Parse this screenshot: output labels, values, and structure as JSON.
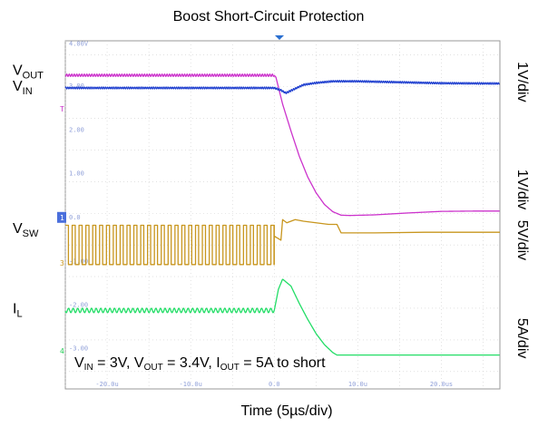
{
  "chart_data": {
    "type": "line",
    "title": "Boost Short-Circuit Protection",
    "xlabel": "Time (5µs/div)",
    "x_unit": "µs",
    "xlim": [
      -25,
      27
    ],
    "x_tick_labels": [
      {
        "x": -20,
        "label": "-20.0u"
      },
      {
        "x": -10,
        "label": "-10.0u"
      },
      {
        "x": 0,
        "label": "0.0"
      },
      {
        "x": 10,
        "label": "10.0u"
      },
      {
        "x": 20,
        "label": "20.0us"
      }
    ],
    "y_tick_labels": [
      {
        "div": 4.35,
        "label": "4.00V"
      },
      {
        "div": 3.02,
        "label": "3.00"
      },
      {
        "div": 1.63,
        "label": "2.00"
      },
      {
        "div": 0.25,
        "label": "1.00"
      },
      {
        "div": -1.13,
        "label": "0.0"
      },
      {
        "div": -2.52,
        "label": "-1.00"
      },
      {
        "div": -3.9,
        "label": "-2.00"
      },
      {
        "div": -5.28,
        "label": "-3.00"
      }
    ],
    "ylim_div": [
      -6.55,
      4.45
    ],
    "grid": true,
    "annotation": {
      "parts": [
        {
          "t": "V"
        },
        {
          "t": "IN",
          "sub": true
        },
        {
          "t": " = 3V, V"
        },
        {
          "t": "OUT",
          "sub": true
        },
        {
          "t": " = 3.4V, I"
        },
        {
          "t": "OUT",
          "sub": true
        },
        {
          "t": " = 5A to short"
        }
      ]
    },
    "left_labels": [
      {
        "name": "VOUT",
        "main": "V",
        "sub": "OUT",
        "y_div": 3.55
      },
      {
        "name": "VIN",
        "main": "V",
        "sub": "IN",
        "y_div": 3.05
      },
      {
        "name": "VSW",
        "main": "V",
        "sub": "SW",
        "y_div": -1.45
      },
      {
        "name": "IL",
        "main": "I",
        "sub": "L",
        "y_div": -3.98
      }
    ],
    "right_labels": [
      {
        "text": "1V/div",
        "y_div": 3.15
      },
      {
        "text": "1V/div",
        "y_div": -0.25
      },
      {
        "text": "5V/div",
        "y_div": -1.85
      },
      {
        "text": "5A/div",
        "y_div": -4.95
      }
    ],
    "channel_markers": [
      {
        "text": "T",
        "color": "#cc33cc",
        "y_div": 2.3
      },
      {
        "text": "1",
        "color": "#4a6fdc",
        "y_div": -1.13
      },
      {
        "text": "3",
        "color": "#c8961e",
        "y_div": -2.57
      },
      {
        "text": "4",
        "color": "#22cc55",
        "y_div": -5.35
      }
    ],
    "series": [
      {
        "name": "VOUT",
        "color": "#cc33cc",
        "points": [
          [
            -25,
            3.36
          ],
          [
            0,
            3.36
          ],
          [
            0.2,
            3.3
          ],
          [
            1.0,
            2.45
          ],
          [
            2.0,
            1.6
          ],
          [
            3.0,
            0.8
          ],
          [
            4.0,
            0.15
          ],
          [
            5.0,
            -0.35
          ],
          [
            6.0,
            -0.72
          ],
          [
            7.0,
            -0.95
          ],
          [
            8.0,
            -1.06
          ],
          [
            9.0,
            -1.07
          ],
          [
            12,
            -1.05
          ],
          [
            16,
            -0.99
          ],
          [
            20,
            -0.94
          ],
          [
            24,
            -0.93
          ],
          [
            27,
            -0.93
          ]
        ],
        "ripple": {
          "from": -25,
          "to": 0,
          "amp": 0.04,
          "period": 0.3
        }
      },
      {
        "name": "VIN",
        "color": "#1f3fcf",
        "points": [
          [
            -25,
            2.96
          ],
          [
            0,
            2.96
          ],
          [
            0.7,
            2.9
          ],
          [
            1.4,
            2.8
          ],
          [
            2.2,
            2.9
          ],
          [
            3.5,
            3.06
          ],
          [
            5.0,
            3.12
          ],
          [
            7.0,
            3.17
          ],
          [
            10,
            3.17
          ],
          [
            15,
            3.14
          ],
          [
            20,
            3.11
          ],
          [
            27,
            3.1
          ]
        ],
        "ripple": {
          "from": -25,
          "to": 27,
          "amp": 0.03,
          "period": 0.25
        }
      },
      {
        "name": "VSW",
        "color": "#c8961e",
        "points": [
          [
            0,
            -1.72
          ],
          [
            0.8,
            -1.85
          ],
          [
            1.0,
            -1.2
          ],
          [
            1.5,
            -1.3
          ],
          [
            2.5,
            -1.2
          ],
          [
            3.5,
            -1.25
          ],
          [
            5.0,
            -1.3
          ],
          [
            6.5,
            -1.35
          ],
          [
            7.5,
            -1.35
          ],
          [
            8.0,
            -1.62
          ],
          [
            12,
            -1.62
          ],
          [
            18,
            -1.6
          ],
          [
            27,
            -1.6
          ]
        ],
        "switching": {
          "from": -25,
          "to": 0,
          "high": -1.38,
          "low": -2.62,
          "period": 0.82
        }
      },
      {
        "name": "IL",
        "color": "#22dd66",
        "points": [
          [
            -25,
            -4.07
          ],
          [
            0,
            -4.07
          ],
          [
            0.5,
            -3.4
          ],
          [
            1.0,
            -3.08
          ],
          [
            2.0,
            -3.3
          ],
          [
            3.0,
            -3.85
          ],
          [
            4.0,
            -4.35
          ],
          [
            5.0,
            -4.8
          ],
          [
            6.0,
            -5.15
          ],
          [
            7.0,
            -5.4
          ],
          [
            7.5,
            -5.48
          ],
          [
            12,
            -5.48
          ],
          [
            20,
            -5.48
          ],
          [
            27,
            -5.48
          ]
        ],
        "ripple": {
          "from": -25,
          "to": 0,
          "amp": 0.07,
          "period": 0.55
        }
      }
    ]
  }
}
